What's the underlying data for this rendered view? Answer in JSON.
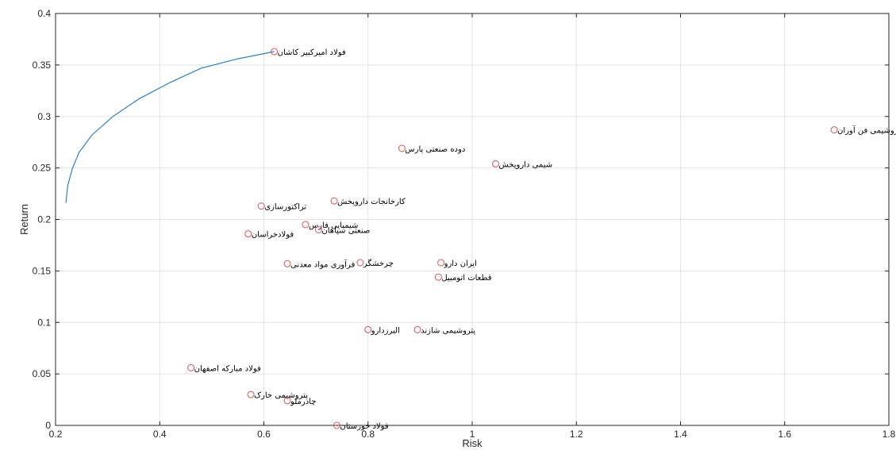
{
  "chart_data": {
    "type": "scatter",
    "title": "",
    "xlabel": "Risk",
    "ylabel": "Return",
    "xlim": [
      0.2,
      1.8
    ],
    "ylim": [
      0,
      0.4
    ],
    "x_ticks": [
      "0.2",
      "0.4",
      "0.6",
      "0.8",
      "1",
      "1.2",
      "1.4",
      "1.6",
      "1.8"
    ],
    "y_ticks": [
      "0",
      "0.05",
      "0.1",
      "0.15",
      "0.2",
      "0.25",
      "0.3",
      "0.35",
      "0.4"
    ],
    "grid": true,
    "frontier": {
      "color": "#2f7fbf",
      "x": [
        0.22,
        0.223,
        0.232,
        0.245,
        0.27,
        0.31,
        0.36,
        0.42,
        0.48,
        0.55,
        0.62
      ],
      "y": [
        0.216,
        0.232,
        0.249,
        0.265,
        0.282,
        0.3,
        0.317,
        0.333,
        0.347,
        0.356,
        0.363
      ]
    },
    "points": {
      "color": "#d9534f",
      "items": [
        {
          "label": "فولاد امیرکبیر کاشان",
          "x": 0.62,
          "y": 0.363
        },
        {
          "label": "پتروشیمی فن آوران",
          "x": 1.695,
          "y": 0.287
        },
        {
          "label": "دوده صنعتی پارس",
          "x": 0.865,
          "y": 0.269
        },
        {
          "label": "شیمی داروپخش",
          "x": 1.045,
          "y": 0.254
        },
        {
          "label": "کارخانجات داروپخش",
          "x": 0.735,
          "y": 0.218
        },
        {
          "label": "تراکتورسازی",
          "x": 0.595,
          "y": 0.213
        },
        {
          "label": "شیمیایی فارس",
          "x": 0.68,
          "y": 0.195
        },
        {
          "label": "صنعتی سپاهان",
          "x": 0.705,
          "y": 0.19
        },
        {
          "label": "فولادخراسان",
          "x": 0.57,
          "y": 0.186
        },
        {
          "label": "فرآوری مواد معدنی",
          "x": 0.645,
          "y": 0.157
        },
        {
          "label": "چرخشگر",
          "x": 0.785,
          "y": 0.158
        },
        {
          "label": "ایران دارو",
          "x": 0.94,
          "y": 0.158
        },
        {
          "label": "قطعات اتومبیل",
          "x": 0.935,
          "y": 0.144
        },
        {
          "label": "البرزدارو",
          "x": 0.8,
          "y": 0.093
        },
        {
          "label": "پتروشیمی شازند",
          "x": 0.895,
          "y": 0.093
        },
        {
          "label": "فولاد مبارکه اصفهان",
          "x": 0.46,
          "y": 0.056
        },
        {
          "label": "پتروشیمی خارک",
          "x": 0.575,
          "y": 0.03
        },
        {
          "label": "چادرملو",
          "x": 0.645,
          "y": 0.024
        },
        {
          "label": "فولاد خوزستان",
          "x": 0.74,
          "y": 0.0
        }
      ]
    }
  }
}
